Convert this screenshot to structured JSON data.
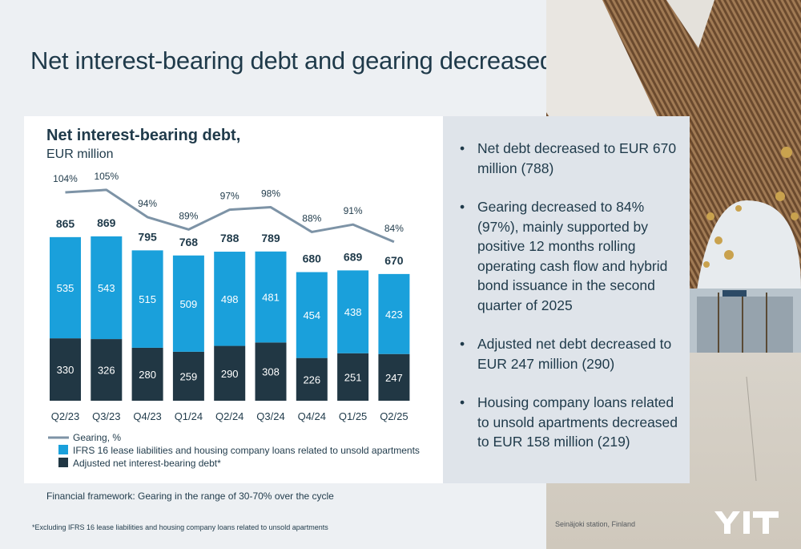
{
  "slide": {
    "title": "Net interest-bearing debt and gearing decreased",
    "framework_note": "Financial framework: Gearing in the range of 30-70% over the cycle",
    "footnote": "*Excluding IFRS 16 lease liabilities and housing company loans related to unsold apartments",
    "photo_caption": "Seinäjoki station, Finland",
    "logo_text": "YIT"
  },
  "bullets": [
    "Net debt decreased to EUR 670 million (788)",
    "Gearing decreased to 84% (97%), mainly supported by positive 12 months rolling operating cash flow and hybrid bond issuance in the second quarter of 2025",
    "Adjusted net debt decreased to EUR 247 million (290)",
    "Housing company loans related to unsold apartments decreased to EUR 158 million (219)"
  ],
  "colors": {
    "adjusted": "#213744",
    "ifrs": "#1aa0db",
    "gearing": "#7d93a6",
    "title": "#1f3a4a"
  },
  "chart_data": {
    "type": "bar",
    "stacked": true,
    "title": "Net interest-bearing debt,",
    "subtitle": "EUR million",
    "categories": [
      "Q2/23",
      "Q3/23",
      "Q4/23",
      "Q1/24",
      "Q2/24",
      "Q3/24",
      "Q4/24",
      "Q1/25",
      "Q2/25"
    ],
    "series": [
      {
        "name": "Adjusted net interest-bearing debt*",
        "values": [
          330,
          326,
          280,
          259,
          290,
          308,
          226,
          251,
          247
        ]
      },
      {
        "name": "IFRS 16 lease liabilities and housing company loans related to unsold apartments",
        "values": [
          535,
          543,
          515,
          509,
          498,
          481,
          454,
          438,
          423
        ]
      }
    ],
    "totals": [
      865,
      869,
      795,
      768,
      788,
      789,
      680,
      689,
      670
    ],
    "line": {
      "name": "Gearing, %",
      "values": [
        104,
        105,
        94,
        89,
        97,
        98,
        88,
        91,
        84
      ],
      "labels": [
        "104%",
        "105%",
        "94%",
        "89%",
        "97%",
        "98%",
        "88%",
        "91%",
        "84%"
      ]
    },
    "ylim": [
      0,
      900
    ],
    "legend_position": "bottom"
  }
}
